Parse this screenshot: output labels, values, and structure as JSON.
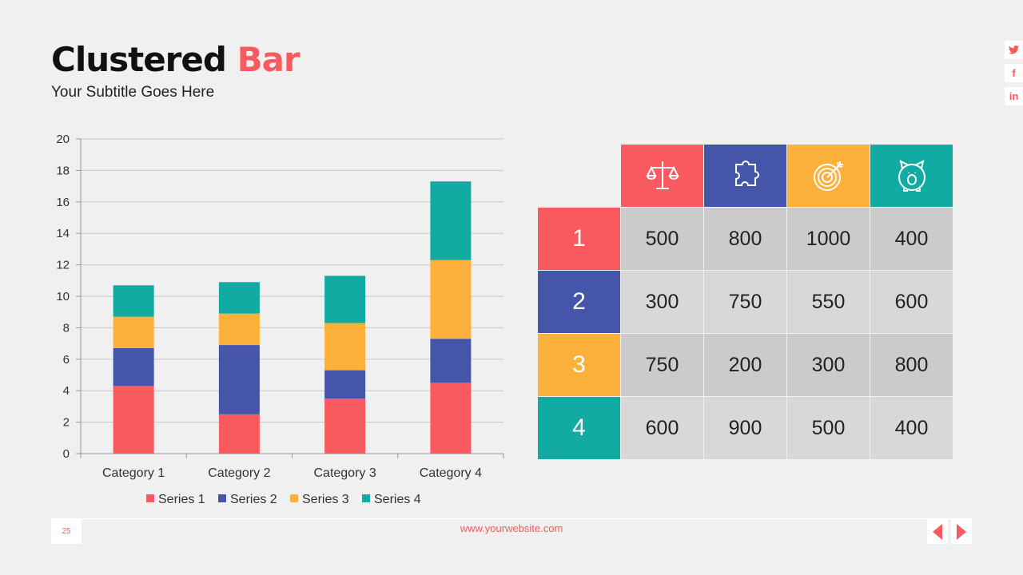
{
  "header": {
    "title_main": "Clustered",
    "title_accent": "Bar",
    "subtitle": "Your Subtitle Goes Here"
  },
  "social": [
    "twitter-icon",
    "facebook-icon",
    "linkedin-icon"
  ],
  "social_glyphs": [
    "🐦",
    "f",
    "in"
  ],
  "colors": {
    "series1": "#f95a5f",
    "series2": "#4455aa",
    "series3": "#fdb03a",
    "series4": "#11aba3",
    "accent": "#f95a5f"
  },
  "chart_data": {
    "type": "bar",
    "stacked": true,
    "categories": [
      "Category 1",
      "Category 2",
      "Category 3",
      "Category 4"
    ],
    "series": [
      {
        "name": "Series 1",
        "values": [
          4.3,
          2.5,
          3.5,
          4.5
        ]
      },
      {
        "name": "Series 2",
        "values": [
          2.4,
          4.4,
          1.8,
          2.8
        ]
      },
      {
        "name": "Series 3",
        "values": [
          2,
          2,
          3,
          5
        ]
      },
      {
        "name": "Series 4",
        "values": [
          2,
          2,
          3,
          5
        ]
      }
    ],
    "ylim": [
      0,
      20
    ],
    "yticks": [
      "0",
      "2",
      "4",
      "6",
      "8",
      "10",
      "12",
      "14",
      "16",
      "18",
      "20"
    ],
    "grid": true,
    "legend": "bottom"
  },
  "table": {
    "header_icons": [
      "scales-icon",
      "puzzle-icon",
      "target-icon",
      "piggy-bank-icon"
    ],
    "rows": [
      {
        "label": "1",
        "values": [
          "500",
          "800",
          "1000",
          "400"
        ]
      },
      {
        "label": "2",
        "values": [
          "300",
          "750",
          "550",
          "600"
        ]
      },
      {
        "label": "3",
        "values": [
          "750",
          "200",
          "300",
          "800"
        ]
      },
      {
        "label": "4",
        "values": [
          "600",
          "900",
          "500",
          "400"
        ]
      }
    ]
  },
  "footer": {
    "page": "25",
    "url": "www.yourwebsite.com"
  }
}
